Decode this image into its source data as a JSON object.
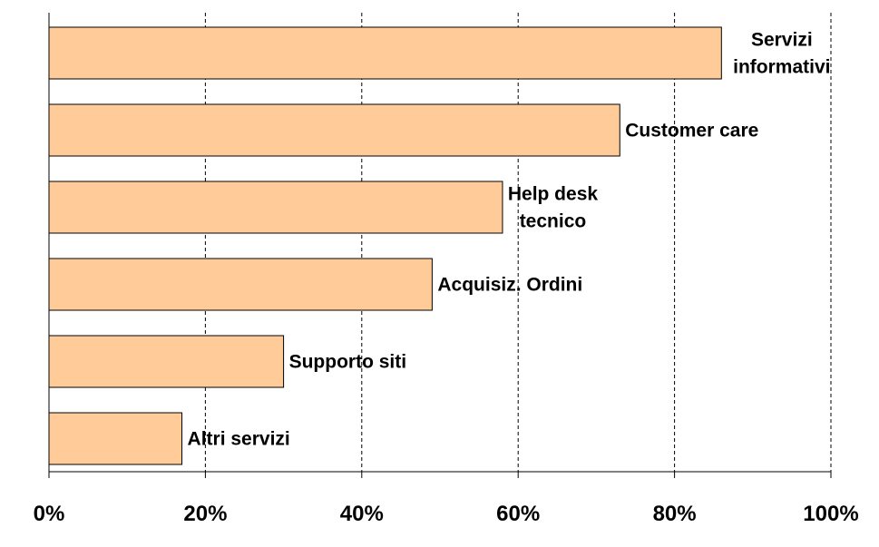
{
  "chart_data": {
    "type": "bar",
    "orientation": "horizontal",
    "categories": [
      "Servizi informativi",
      "Customer care",
      "Help desk tecnico",
      "Acquisiz. Ordini",
      "Supporto siti",
      "Altri servizi"
    ],
    "label_lines": [
      [
        "Servizi",
        "informativi"
      ],
      [
        "Customer care"
      ],
      [
        "Help desk",
        "tecnico"
      ],
      [
        "Acquisiz. Ordini"
      ],
      [
        "Supporto siti"
      ],
      [
        "Altri servizi"
      ]
    ],
    "values": [
      86,
      73,
      58,
      49,
      30,
      17
    ],
    "xlim": [
      0,
      100
    ],
    "x_ticks": [
      0,
      20,
      40,
      60,
      80,
      100
    ],
    "x_tick_labels": [
      "0%",
      "20%",
      "40%",
      "60%",
      "80%",
      "100%"
    ],
    "grid": "vertical dashed",
    "legend": "none",
    "title": "",
    "xlabel": "",
    "ylabel": ""
  },
  "colors": {
    "bar_fill": "#FFCC99",
    "bar_stroke": "#000000",
    "grid": "#000000",
    "axis": "#000000",
    "background": "#FFFFFF"
  }
}
